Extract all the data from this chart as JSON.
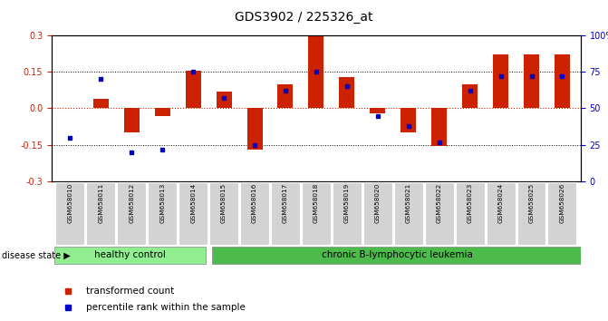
{
  "title": "GDS3902 / 225326_at",
  "samples": [
    "GSM658010",
    "GSM658011",
    "GSM658012",
    "GSM658013",
    "GSM658014",
    "GSM658015",
    "GSM658016",
    "GSM658017",
    "GSM658018",
    "GSM658019",
    "GSM658020",
    "GSM658021",
    "GSM658022",
    "GSM658023",
    "GSM658024",
    "GSM658025",
    "GSM658026"
  ],
  "red_values": [
    0.0,
    0.04,
    -0.1,
    -0.03,
    0.155,
    0.07,
    -0.17,
    0.1,
    0.3,
    0.13,
    -0.02,
    -0.1,
    -0.155,
    0.1,
    0.22,
    0.22,
    0.22
  ],
  "blue_values_pct": [
    30,
    70,
    20,
    22,
    75,
    57,
    25,
    62,
    75,
    65,
    45,
    38,
    27,
    62,
    72,
    72,
    72
  ],
  "healthy_count": 5,
  "disease_count": 12,
  "healthy_label": "healthy control",
  "disease_label": "chronic B-lymphocytic leukemia",
  "disease_state_label": "disease state",
  "legend_red": "transformed count",
  "legend_blue": "percentile rank within the sample",
  "ylim_left": [
    -0.3,
    0.3
  ],
  "ylim_right": [
    0,
    100
  ],
  "yticks_left": [
    -0.3,
    -0.15,
    0.0,
    0.15,
    0.3
  ],
  "yticks_right": [
    0,
    25,
    50,
    75,
    100
  ],
  "red_color": "#CC2200",
  "blue_color": "#0000CC",
  "bar_width": 0.5,
  "healthy_bg": "#90EE90",
  "disease_bg": "#4CBB4C",
  "sample_bg": "#D3D3D3",
  "bar_area_bg": "#FFFFFF"
}
